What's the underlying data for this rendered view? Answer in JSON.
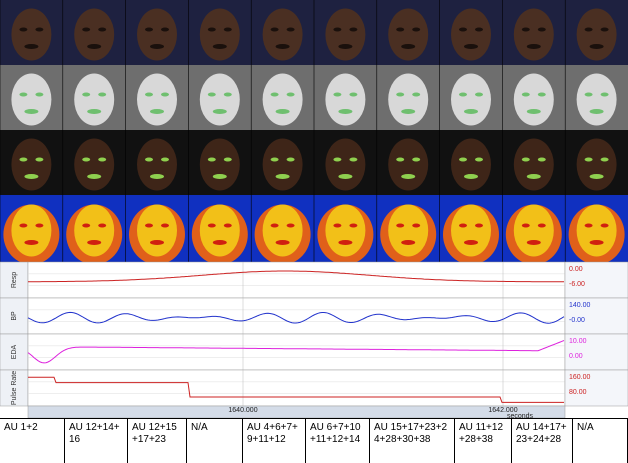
{
  "panels": [
    {
      "label": "Resp",
      "ticks": [
        "0.00",
        "-6.00"
      ]
    },
    {
      "label": "BP",
      "ticks": [
        "140.00",
        "-0.00"
      ]
    },
    {
      "label": "EDA",
      "ticks": [
        "10.00",
        "0.00"
      ]
    },
    {
      "label": "Pulse Rate",
      "ticks": [
        "160.00",
        "80.00"
      ]
    }
  ],
  "time_axis": {
    "ticks": [
      "1640.000",
      "1642.000"
    ],
    "unit": "seconds"
  },
  "table": {
    "cells": [
      "AU 1+2",
      "AU 12+14+16",
      "AU 12+15+17+23",
      "N/A",
      "AU 4+6+7+9+11+12",
      "AU 6+7+10+11+12+14",
      "AU 15+17+23+24+28+30+38",
      "AU 11+12+28+38",
      "AU 14+17+23+24+28",
      "N/A"
    ]
  }
}
